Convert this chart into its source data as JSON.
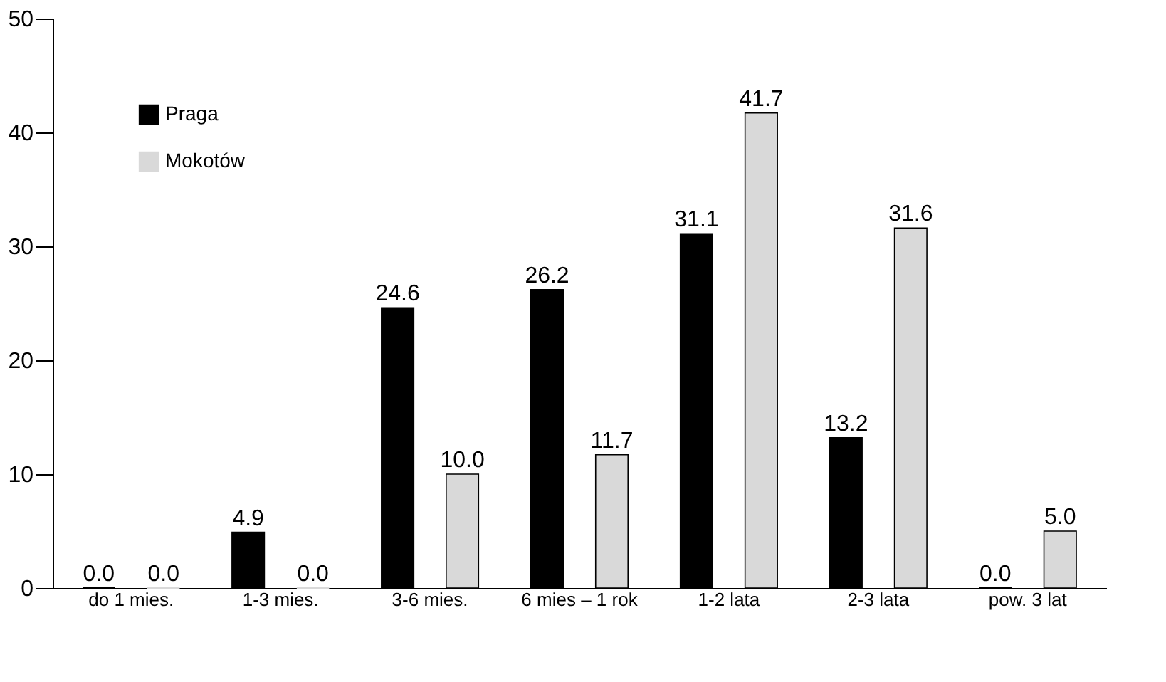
{
  "chart_data": {
    "type": "bar",
    "categories": [
      "do 1 mies.",
      "1-3 mies.",
      "3-6 mies.",
      "6 mies – 1 rok",
      "1-2 lata",
      "2-3 lata",
      "pow. 3 lat"
    ],
    "series": [
      {
        "name": "Praga",
        "color": "#000000",
        "values": [
          0.0,
          4.9,
          24.6,
          26.2,
          31.1,
          13.2,
          0.0
        ],
        "value_labels": [
          "0.0",
          "4.9",
          "24.6",
          "26.2",
          "31.1",
          "13.2",
          "0.0"
        ]
      },
      {
        "name": "Mokotów",
        "color": "#d9d9d9",
        "values": [
          0.0,
          0.0,
          10.0,
          11.7,
          41.7,
          31.6,
          5.0
        ],
        "value_labels": [
          "0.0",
          "0.0",
          "10.0",
          "11.7",
          "41.7",
          "31.6",
          "5.0"
        ]
      }
    ],
    "ylim": [
      0,
      50
    ],
    "yticks": [
      0,
      10,
      20,
      30,
      40,
      50
    ],
    "grid": false,
    "legend": "top left"
  }
}
